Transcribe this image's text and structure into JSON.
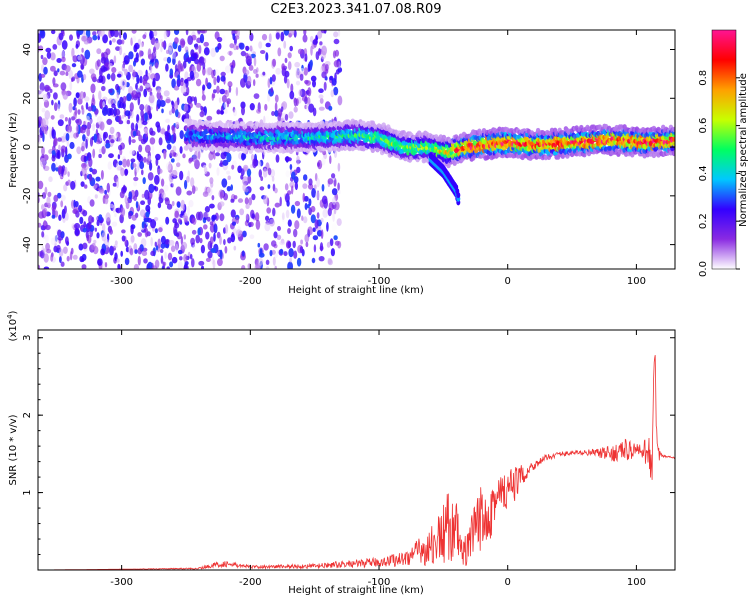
{
  "page": {
    "title": "C2E3.2023.341.07.08.R09"
  },
  "chart_data": [
    {
      "type": "heatmap",
      "xlabel": "Height of straight line (km)",
      "ylabel": "Frequency (Hz)",
      "xlim": [
        -365,
        130
      ],
      "ylim": [
        -50,
        48
      ],
      "xticks": [
        -300,
        -200,
        -100,
        0,
        100
      ],
      "yticks": [
        -40,
        -20,
        0,
        20,
        40
      ],
      "colorbar": {
        "label": "Normalized spectral amplitude",
        "range": [
          0,
          1
        ],
        "ticks": [
          "0.0",
          "0.2",
          "0.4",
          "0.6",
          "0.8"
        ],
        "tick_values": [
          0.0,
          0.2,
          0.4,
          0.6,
          0.8
        ],
        "colors": [
          "#ffffff",
          "#8a2be2",
          "#3300ff",
          "#00c8ff",
          "#00ff60",
          "#c8ff00",
          "#ffa000",
          "#ff0000",
          "#ff1493"
        ]
      },
      "bands": [
        {
          "x_from": -365,
          "x_to": -240,
          "density": "high",
          "max_amplitude": 0.3
        },
        {
          "x_from": -240,
          "x_to": -130,
          "density": "medium",
          "max_amplitude": 0.3
        },
        {
          "x_from": -130,
          "x_to": 130,
          "density": "low",
          "max_amplitude": 0.1
        }
      ],
      "ridge": {
        "x": [
          -250,
          -200,
          -150,
          -120,
          -100,
          -80,
          -60,
          -45,
          -35,
          -20,
          0,
          20,
          50,
          80,
          110,
          130
        ],
        "freq_hz": [
          5,
          4,
          4,
          5,
          4,
          0,
          0,
          -2,
          0,
          1,
          2,
          1,
          2,
          3,
          2,
          3
        ],
        "amplitude": [
          0.35,
          0.4,
          0.45,
          0.5,
          0.55,
          0.6,
          0.6,
          0.75,
          0.85,
          0.9,
          0.9,
          0.9,
          0.92,
          0.92,
          0.92,
          0.9
        ]
      },
      "branch": {
        "x": [
          -60,
          -50,
          -45,
          -40,
          -38
        ],
        "freq_hz": [
          -5,
          -10,
          -14,
          -18,
          -22
        ]
      }
    },
    {
      "type": "line",
      "xlabel": "Height of straight line (km)",
      "ylabel": "SNR (10 * v/v)",
      "y_multiplier_label": "(x10",
      "y_multiplier_exp": "4",
      "y_multiplier_close": ")",
      "xlim": [
        -365,
        130
      ],
      "ylim": [
        0,
        3.1
      ],
      "xticks": [
        -300,
        -200,
        -100,
        0,
        100
      ],
      "yticks": [
        1,
        2,
        3
      ],
      "series": [
        {
          "color": "#ee3333",
          "x": [
            -365,
            -300,
            -240,
            -230,
            -220,
            -200,
            -150,
            -120,
            -100,
            -80,
            -60,
            -50,
            -45,
            -40,
            -35,
            -30,
            -20,
            -10,
            0,
            10,
            20,
            30,
            40,
            60,
            80,
            90,
            100,
            105,
            110,
            112,
            114,
            116,
            120,
            130
          ],
          "y": [
            0.0,
            0.01,
            0.02,
            0.06,
            0.08,
            0.04,
            0.05,
            0.08,
            0.1,
            0.15,
            0.3,
            0.45,
            0.6,
            0.5,
            0.2,
            0.3,
            0.7,
            0.9,
            1.0,
            1.2,
            1.35,
            1.45,
            1.5,
            1.52,
            1.5,
            1.55,
            1.55,
            1.5,
            1.6,
            1.2,
            2.9,
            1.5,
            1.47,
            1.45
          ],
          "noise": [
            0.0,
            0.0,
            0.01,
            0.03,
            0.04,
            0.02,
            0.03,
            0.05,
            0.06,
            0.1,
            0.25,
            0.4,
            0.5,
            0.4,
            0.15,
            0.3,
            0.5,
            0.4,
            0.3,
            0.15,
            0.06,
            0.04,
            0.03,
            0.03,
            0.1,
            0.15,
            0.12,
            0.1,
            0.3,
            0.2,
            0.4,
            0.2,
            0.02,
            0.01
          ]
        }
      ]
    }
  ]
}
